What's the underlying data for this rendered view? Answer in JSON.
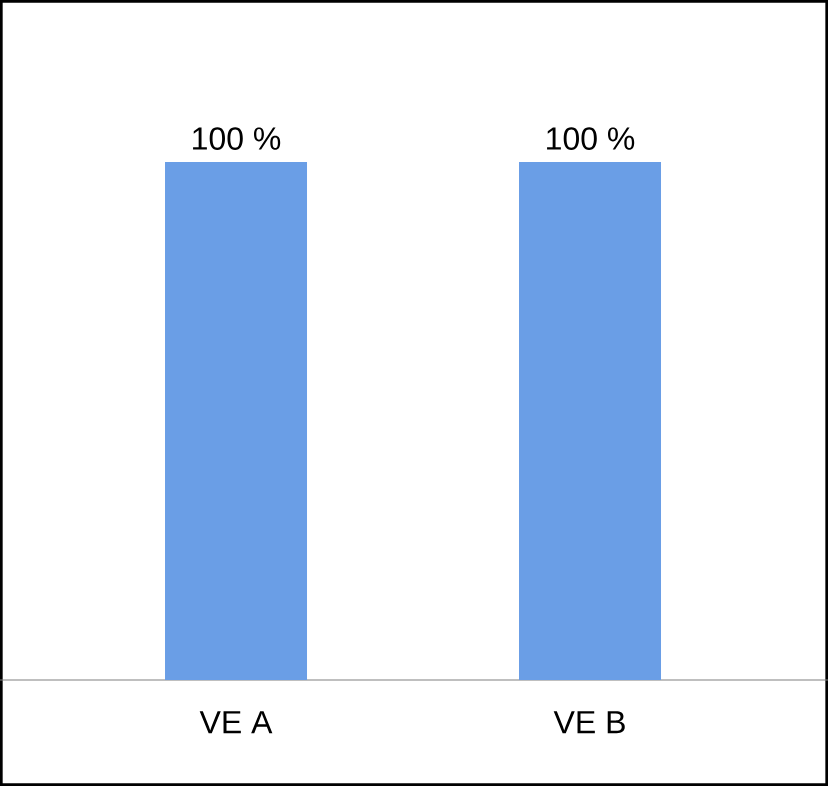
{
  "chart_data": {
    "type": "bar",
    "categories": [
      "VE A",
      "VE B"
    ],
    "values": [
      100,
      100
    ],
    "value_labels": [
      "100 %",
      "100 %"
    ],
    "color": "#6a9ee6"
  }
}
